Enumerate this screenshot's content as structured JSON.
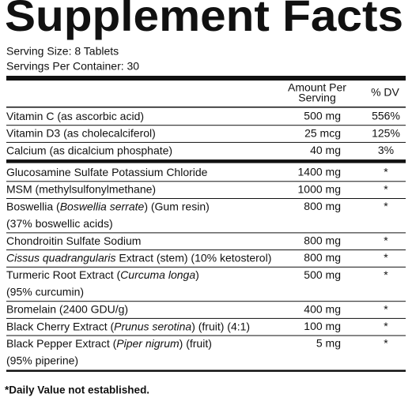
{
  "header": {
    "title": "Supplement Facts",
    "serving_size": "Serving Size: 8 Tablets",
    "servings_per_container": "Servings Per Container: 30"
  },
  "table": {
    "columns": {
      "amount": [
        "Amount Per",
        "Serving"
      ],
      "dv": "% DV"
    },
    "groups": [
      {
        "rows": [
          {
            "name": [
              {
                "text": "Vitamin C (as ascorbic acid)"
              }
            ],
            "amount": "500 mg",
            "dv": "556%"
          },
          {
            "name": [
              {
                "text": "Vitamin D3 (as cholecalciferol)"
              }
            ],
            "amount": "25 mcg",
            "dv": "125%"
          },
          {
            "name": [
              {
                "text": "Calcium (as dicalcium phosphate)"
              }
            ],
            "amount": "40 mg",
            "dv": "3%"
          }
        ]
      },
      {
        "rows": [
          {
            "name": [
              {
                "text": "Glucosamine Sulfate Potassium Chloride"
              }
            ],
            "amount": "1400 mg",
            "dv": "*"
          },
          {
            "name": [
              {
                "text": "MSM (methylsulfonylmethane)"
              }
            ],
            "amount": "1000 mg",
            "dv": "*"
          },
          {
            "name": [
              {
                "text": "Boswellia ("
              },
              {
                "text": "Boswellia serrate",
                "italic": true
              },
              {
                "text": ") (Gum resin)"
              }
            ],
            "name_line2": "(37% boswellic acids)",
            "amount": "800 mg",
            "dv": "*"
          },
          {
            "name": [
              {
                "text": "Chondroitin Sulfate Sodium"
              }
            ],
            "amount": "800 mg",
            "dv": "*"
          },
          {
            "name": [
              {
                "text": "Cissus quadrangularis",
                "italic": true
              },
              {
                "text": " Extract (stem) (10% ketosterol)"
              }
            ],
            "amount": "800 mg",
            "dv": "*"
          },
          {
            "name": [
              {
                "text": "Turmeric Root Extract ("
              },
              {
                "text": "Curcuma longa",
                "italic": true
              },
              {
                "text": ")"
              }
            ],
            "name_line2": "(95% curcumin)",
            "amount": "500 mg",
            "dv": "*"
          },
          {
            "name": [
              {
                "text": "Bromelain (2400 GDU/g)"
              }
            ],
            "amount": "400 mg",
            "dv": "*"
          },
          {
            "name": [
              {
                "text": "Black Cherry Extract ("
              },
              {
                "text": "Prunus serotina",
                "italic": true
              },
              {
                "text": ") (fruit) (4:1)"
              }
            ],
            "amount": "100 mg",
            "dv": "*"
          },
          {
            "name": [
              {
                "text": "Black Pepper Extract ("
              },
              {
                "text": "Piper nigrum",
                "italic": true
              },
              {
                "text": ") (fruit)"
              }
            ],
            "name_line2": "(95% piperine)",
            "amount": "5 mg",
            "dv": "*"
          }
        ]
      }
    ]
  },
  "footnote": "*Daily Value not established."
}
